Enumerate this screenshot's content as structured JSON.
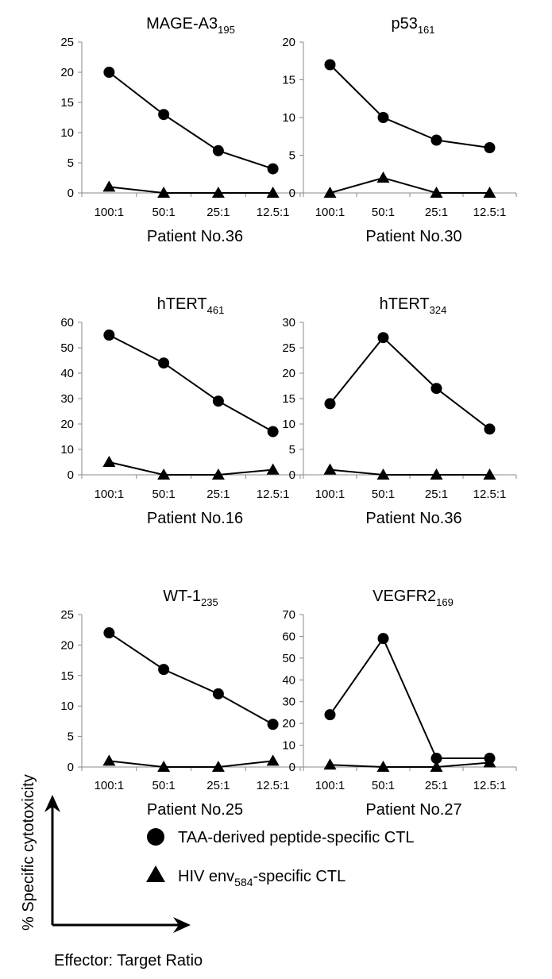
{
  "chart_data": [
    {
      "type": "line",
      "title_main": "MAGE-A3",
      "title_sub": "195",
      "xlabel": "Patient No.36",
      "categories": [
        "100:1",
        "50:1",
        "25:1",
        "12.5:1"
      ],
      "ylim": [
        0,
        25
      ],
      "yticks": [
        "0",
        "5",
        "10",
        "15",
        "20",
        "25"
      ],
      "series": [
        {
          "values": [
            20,
            13,
            7,
            4
          ],
          "marker": "circle"
        },
        {
          "values": [
            1,
            0,
            0,
            0
          ],
          "marker": "triangle"
        }
      ]
    },
    {
      "type": "line",
      "title_main": "p53",
      "title_sub": "161",
      "xlabel": "Patient No.30",
      "categories": [
        "100:1",
        "50:1",
        "25:1",
        "12.5:1"
      ],
      "ylim": [
        0,
        20
      ],
      "yticks": [
        "0",
        "5",
        "10",
        "15",
        "20"
      ],
      "series": [
        {
          "values": [
            17,
            10,
            7,
            6
          ],
          "marker": "circle"
        },
        {
          "values": [
            0,
            2,
            0,
            0
          ],
          "marker": "triangle"
        }
      ]
    },
    {
      "type": "line",
      "title_main": "hTERT",
      "title_sub": "461",
      "xlabel": "Patient No.16",
      "categories": [
        "100:1",
        "50:1",
        "25:1",
        "12.5:1"
      ],
      "ylim": [
        0,
        60
      ],
      "yticks": [
        "0",
        "10",
        "20",
        "30",
        "40",
        "50",
        "60"
      ],
      "series": [
        {
          "values": [
            55,
            44,
            29,
            17
          ],
          "marker": "circle"
        },
        {
          "values": [
            5,
            0,
            0,
            2
          ],
          "marker": "triangle"
        }
      ]
    },
    {
      "type": "line",
      "title_main": "hTERT",
      "title_sub": "324",
      "xlabel": "Patient No.36",
      "categories": [
        "100:1",
        "50:1",
        "25:1",
        "12.5:1"
      ],
      "ylim": [
        0,
        30
      ],
      "yticks": [
        "0",
        "5",
        "10",
        "15",
        "20",
        "25",
        "30"
      ],
      "series": [
        {
          "values": [
            14,
            27,
            17,
            9
          ],
          "marker": "circle"
        },
        {
          "values": [
            1,
            0,
            0,
            0
          ],
          "marker": "triangle"
        }
      ]
    },
    {
      "type": "line",
      "title_main": "WT-1",
      "title_sub": "235",
      "xlabel": "Patient No.25",
      "categories": [
        "100:1",
        "50:1",
        "25:1",
        "12.5:1"
      ],
      "ylim": [
        0,
        25
      ],
      "yticks": [
        "0",
        "5",
        "10",
        "15",
        "20",
        "25"
      ],
      "series": [
        {
          "values": [
            22,
            16,
            12,
            7
          ],
          "marker": "circle"
        },
        {
          "values": [
            1,
            0,
            0,
            1
          ],
          "marker": "triangle"
        }
      ]
    },
    {
      "type": "line",
      "title_main": "VEGFR2",
      "title_sub": "169",
      "xlabel": "Patient No.27",
      "categories": [
        "100:1",
        "50:1",
        "25:1",
        "12.5:1"
      ],
      "ylim": [
        0,
        70
      ],
      "yticks": [
        "0",
        "10",
        "20",
        "30",
        "40",
        "50",
        "60",
        "70"
      ],
      "series": [
        {
          "values": [
            24,
            59,
            4,
            4
          ],
          "marker": "circle"
        },
        {
          "values": [
            1,
            0,
            0,
            2
          ],
          "marker": "triangle"
        }
      ]
    }
  ],
  "legend": [
    {
      "marker": "circle",
      "label": "TAA-derived peptide-specific CTL",
      "label_sub": "",
      "label_after": ""
    },
    {
      "marker": "triangle",
      "label": "HIV env",
      "label_sub": "584",
      "label_after": "-specific CTL"
    }
  ],
  "axis_guide": {
    "ylabel": "% Specific cytotoxicity",
    "xlabel": "Effector: Target Ratio"
  },
  "colors": {
    "line": "#000000",
    "marker": "#000000",
    "axis": "#888888"
  }
}
